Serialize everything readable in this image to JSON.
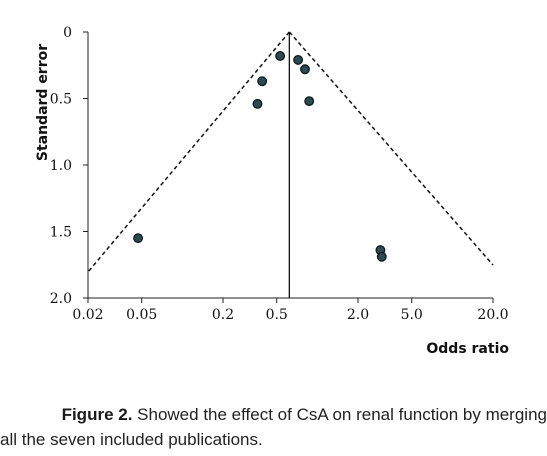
{
  "chart_data": {
    "type": "scatter",
    "title": "",
    "xlabel": "Odds ratio",
    "ylabel": "Standard error",
    "x_scale": "log",
    "y_reversed": true,
    "xlim": [
      0.02,
      20.0
    ],
    "ylim": [
      0,
      2.0
    ],
    "x_ticks": [
      0.02,
      0.05,
      0.2,
      0.5,
      2.0,
      5.0,
      20.0
    ],
    "x_tick_labels": [
      "0.02",
      "0.05",
      "0.2",
      "0.5",
      "2.0",
      "5.0",
      "20.0"
    ],
    "y_ticks": [
      0,
      0.5,
      1.0,
      1.5,
      2.0
    ],
    "y_tick_labels": [
      "0",
      "0.5",
      "1.0",
      "1.5",
      "2.0"
    ],
    "pooled_odds_ratio": 0.62,
    "funnel_lines": "dashed",
    "points": [
      {
        "x": 0.047,
        "y": 1.55
      },
      {
        "x": 0.36,
        "y": 0.54
      },
      {
        "x": 0.39,
        "y": 0.37
      },
      {
        "x": 0.53,
        "y": 0.18
      },
      {
        "x": 0.72,
        "y": 0.21
      },
      {
        "x": 0.81,
        "y": 0.28
      },
      {
        "x": 0.87,
        "y": 0.52
      },
      {
        "x": 2.93,
        "y": 1.64
      },
      {
        "x": 3.0,
        "y": 1.69
      }
    ],
    "marker_color": "#2c4a50",
    "grid": false,
    "legend": "none"
  },
  "caption": {
    "label": "Figure 2.",
    "line1": " Showed the effect of CsA on renal function by merging",
    "line2": "all the seven included publications."
  }
}
